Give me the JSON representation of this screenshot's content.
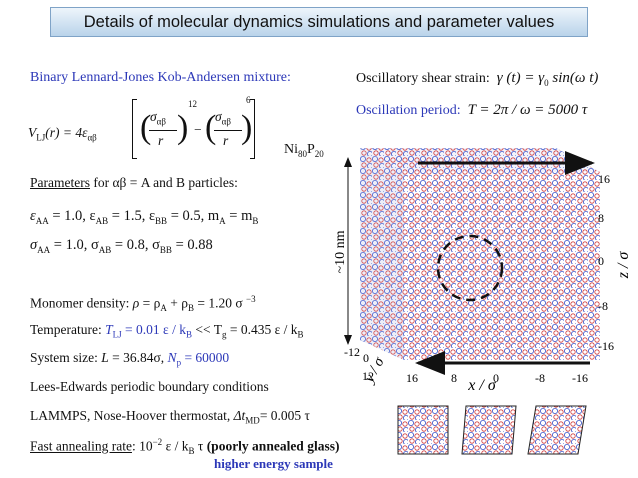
{
  "title": "Details of molecular dynamics simulations and parameter values",
  "left": {
    "heading": "Binary Lennard-Jones Kob-Andersen mixture:",
    "formula": [
      "V",
      "LJ",
      "(r) = 4ε",
      "αβ",
      "σ",
      "αβ",
      "r",
      "12",
      "−",
      "σ",
      "αβ",
      "r",
      "6"
    ],
    "params_heading": [
      "Parameters",
      " for αβ = A and B particles:"
    ],
    "eps": [
      "ε",
      "AA",
      " = 1.0, ε",
      "AB",
      " = 1.5, ε",
      "BB",
      " = 0.5, m",
      "A",
      " = m",
      "B"
    ],
    "sig": [
      "σ",
      "AA",
      " = 1.0, σ",
      "AB",
      " = 0.8, σ",
      "BB",
      " = 0.88"
    ],
    "density": [
      "Monomer density: ",
      "ρ",
      " = ρ",
      "A",
      " + ρ",
      "B",
      " = 1.20 σ ",
      "−3"
    ],
    "temperature": [
      "Temperature: ",
      "T",
      "LJ",
      " = 0.01 ε / k",
      "B",
      " << T",
      "g",
      " = 0.435 ε / k",
      "B"
    ],
    "size": [
      "System size: ",
      "L",
      " = 36.84σ, ",
      "N",
      "p",
      " = 60000"
    ],
    "boundary": "Lees-Edwards periodic boundary conditions",
    "lammps": [
      "LAMMPS, Nose-Hoover thermostat, ",
      "Δt",
      "MD",
      "= 0.005 τ"
    ],
    "annealing": [
      "Fast annealing rate",
      ": 10",
      "−2",
      " ε / k",
      "B",
      " τ ",
      "(poorly annealed glass)"
    ],
    "note": "higher energy sample"
  },
  "right": {
    "shear": [
      "Oscillatory shear strain:",
      "γ (t) = γ",
      "0",
      " sin(ω t)"
    ],
    "period": [
      "Oscillation period:",
      "T = 2π / ω = 5000 τ"
    ],
    "material": [
      "Ni",
      "80",
      "P",
      "20"
    ],
    "figure": {
      "scale": "~10 nm",
      "z_ticks": [
        "16",
        "8",
        "0",
        "-8",
        "-16"
      ],
      "z_label": "z / σ",
      "x_ticks": [
        "16",
        "8",
        "0",
        "-8",
        "-16"
      ],
      "x_label": "x / σ",
      "y_ticks": [
        "-12",
        "0",
        "12"
      ],
      "y_label": "y / σ"
    }
  }
}
